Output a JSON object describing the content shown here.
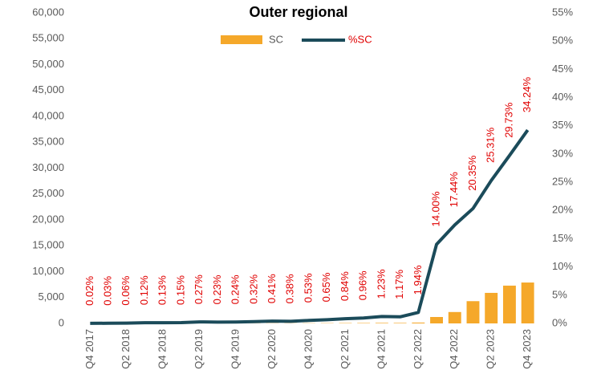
{
  "chart_data": {
    "type": "bar_line",
    "title": "Outer regional",
    "categories": [
      "Q4 2017",
      null,
      "Q2 2018",
      null,
      "Q4 2018",
      null,
      "Q2 2019",
      null,
      "Q4 2019",
      null,
      "Q2 2020",
      null,
      "Q4 2020",
      null,
      "Q2 2021",
      null,
      "Q4 2021",
      null,
      "Q2 2022",
      null,
      "Q4 2022",
      null,
      "Q2 2023",
      null,
      "Q4 2023"
    ],
    "series": [
      {
        "name": "SC",
        "type": "bar",
        "color": "#f5a82a",
        "values": [
          2,
          2,
          5,
          10,
          10,
          12,
          22,
          19,
          20,
          26,
          34,
          31,
          44,
          54,
          70,
          80,
          102,
          97,
          160,
          1240,
          2200,
          4300,
          5900,
          7300,
          7900
        ]
      },
      {
        "name": "%SC",
        "type": "line",
        "axis": "y2",
        "color": "#1b4b5a",
        "legend_text_color": "#e00000",
        "values": [
          0.02,
          0.03,
          0.06,
          0.12,
          0.13,
          0.15,
          0.27,
          0.23,
          0.24,
          0.32,
          0.41,
          0.38,
          0.53,
          0.65,
          0.84,
          0.96,
          1.23,
          1.17,
          1.94,
          14.0,
          17.44,
          20.35,
          25.31,
          29.73,
          34.24
        ],
        "value_labels": [
          "0.02%",
          "0.03%",
          "0.06%",
          "0.12%",
          "0.13%",
          "0.15%",
          "0.27%",
          "0.23%",
          "0.24%",
          "0.32%",
          "0.41%",
          "0.38%",
          "0.53%",
          "0.65%",
          "0.84%",
          "0.96%",
          "1.23%",
          "1.17%",
          "1.94%",
          "14.00%",
          "17.44%",
          "20.35%",
          "25.31%",
          "29.73%",
          "34.24%"
        ]
      }
    ],
    "ylim": [
      0,
      60000
    ],
    "yticks": [
      0,
      {
        "value": 5000,
        "label": "5,000"
      },
      {
        "value": 10000,
        "label": "10,000"
      },
      {
        "value": 15000,
        "label": "15,000"
      },
      {
        "value": 20000,
        "label": "20,000"
      },
      {
        "value": 25000,
        "label": "25,000"
      },
      {
        "value": 30000,
        "label": "30,000"
      },
      {
        "value": 35000,
        "label": "35,000"
      },
      {
        "value": 40000,
        "label": "40,000"
      },
      {
        "value": 45000,
        "label": "45,000"
      },
      {
        "value": 50000,
        "label": "50,000"
      },
      {
        "value": 55000,
        "label": "55,000"
      },
      {
        "value": 60000,
        "label": "60,000"
      }
    ],
    "y2lim": [
      0,
      55
    ],
    "y2ticks": [
      {
        "value": 0,
        "label": "0%"
      },
      {
        "value": 5,
        "label": "5%"
      },
      {
        "value": 10,
        "label": "10%"
      },
      {
        "value": 15,
        "label": "15%"
      },
      {
        "value": 20,
        "label": "20%"
      },
      {
        "value": 25,
        "label": "25%"
      },
      {
        "value": 30,
        "label": "30%"
      },
      {
        "value": 35,
        "label": "35%"
      },
      {
        "value": 40,
        "label": "40%"
      },
      {
        "value": 45,
        "label": "45%"
      },
      {
        "value": 50,
        "label": "50%"
      },
      {
        "value": 55,
        "label": "55%"
      }
    ],
    "data_label_color": "#e00000",
    "legend": "top"
  }
}
